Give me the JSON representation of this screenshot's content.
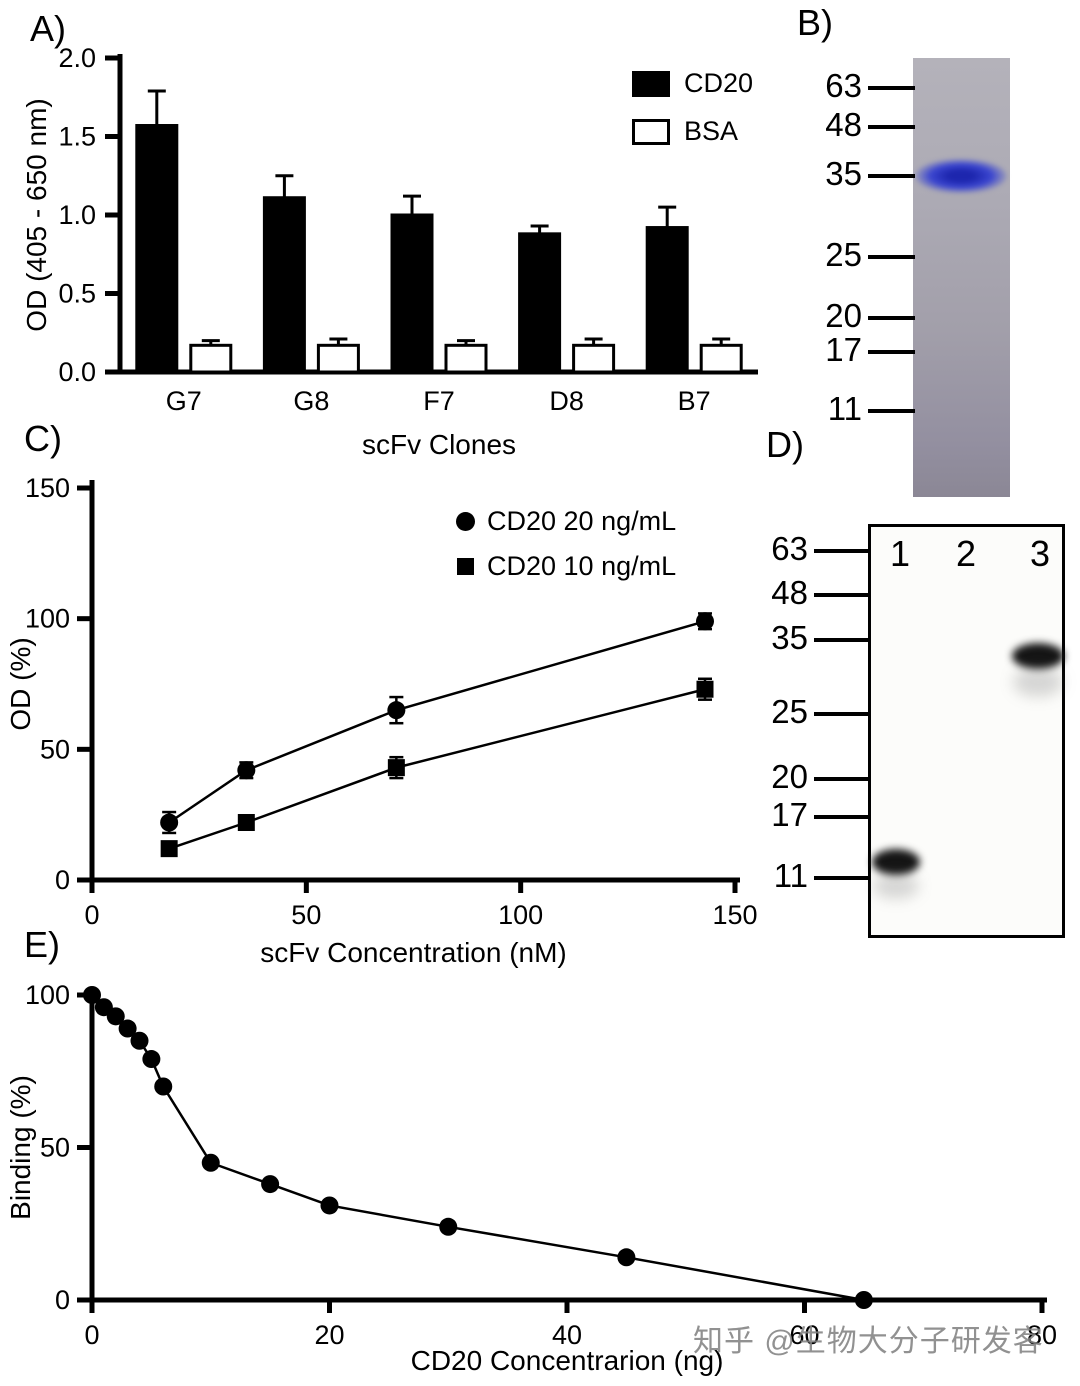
{
  "watermark": "知乎 @生物大分子研发客",
  "panels": {
    "a": "A)",
    "b": "B)",
    "c": "C)",
    "d": "D)",
    "e": "E)"
  },
  "chart_data": [
    {
      "id": "panel-a-elisa-bar",
      "type": "bar",
      "title": "",
      "categories": [
        "G7",
        "G8",
        "F7",
        "D8",
        "B7"
      ],
      "series": [
        {
          "name": "CD20",
          "fill": "#000000",
          "values": [
            1.57,
            1.11,
            1.0,
            0.88,
            0.92
          ],
          "errors": [
            0.22,
            0.14,
            0.12,
            0.05,
            0.13
          ]
        },
        {
          "name": "BSA",
          "fill": "#ffffff",
          "values": [
            0.17,
            0.17,
            0.17,
            0.17,
            0.17
          ],
          "errors": [
            0.03,
            0.04,
            0.03,
            0.04,
            0.04
          ]
        }
      ],
      "xlabel": "scFv Clones",
      "ylabel": "OD (405 - 650 nm)",
      "ylim": [
        0,
        2.0
      ],
      "yticks": [
        0,
        0.5,
        1.0,
        1.5,
        2.0
      ],
      "ytick_labels": [
        "0.0",
        "0.5",
        "1.0",
        "1.5",
        "2.0"
      ],
      "legend_position": "top-right",
      "grid": false
    },
    {
      "id": "panel-c-dose-response-line",
      "type": "line",
      "title": "",
      "x": [
        18,
        36,
        71,
        143
      ],
      "series": [
        {
          "name": "CD20 20 ng/mL",
          "marker": "circle",
          "values": [
            22,
            42,
            65,
            99
          ],
          "errors": [
            4,
            3,
            5,
            3
          ]
        },
        {
          "name": "CD20 10 ng/mL",
          "marker": "square",
          "values": [
            12,
            22,
            43,
            73
          ],
          "errors": [
            2,
            2,
            4,
            4
          ]
        }
      ],
      "xlabel": "scFv Concentration (nM)",
      "ylabel": "OD (%)",
      "xlim": [
        0,
        150
      ],
      "ylim": [
        0,
        150
      ],
      "xticks": [
        0,
        50,
        100,
        150
      ],
      "xtick_labels": [
        "0",
        "50",
        "100",
        "150"
      ],
      "yticks": [
        0,
        50,
        100,
        150
      ],
      "ytick_labels": [
        "0",
        "50",
        "100",
        "150"
      ],
      "legend_position": "top-center",
      "grid": false
    },
    {
      "id": "panel-e-competition-line",
      "type": "line",
      "title": "",
      "x": [
        0,
        1,
        2,
        3,
        4,
        5,
        6,
        10,
        15,
        20,
        30,
        45,
        65
      ],
      "series": [
        {
          "name": "Binding",
          "marker": "circle",
          "values": [
            100,
            96,
            93,
            89,
            85,
            79,
            70,
            45,
            38,
            31,
            24,
            14,
            0
          ]
        }
      ],
      "xlabel": "CD20 Concentrarion (ng)",
      "ylabel": "Binding (%)",
      "xlim": [
        0,
        80
      ],
      "ylim": [
        0,
        100
      ],
      "xticks": [
        0,
        20,
        40,
        60,
        80
      ],
      "xtick_labels": [
        "0",
        "20",
        "40",
        "60",
        "80"
      ],
      "yticks": [
        0,
        50,
        100
      ],
      "ytick_labels": [
        "0",
        "50",
        "100"
      ],
      "grid": false
    }
  ],
  "gel_b": {
    "markers": [
      "63",
      "48",
      "35",
      "25",
      "20",
      "17",
      "11"
    ],
    "bands": [
      {
        "kda": 35,
        "color": "#3a45cf"
      }
    ]
  },
  "blot_d": {
    "markers": [
      "63",
      "48",
      "35",
      "25",
      "20",
      "17",
      "11"
    ],
    "lanes": [
      "1",
      "2",
      "3"
    ],
    "bands": [
      {
        "lane": "1",
        "kda": 12
      },
      {
        "lane": "3",
        "kda": 33
      }
    ]
  }
}
